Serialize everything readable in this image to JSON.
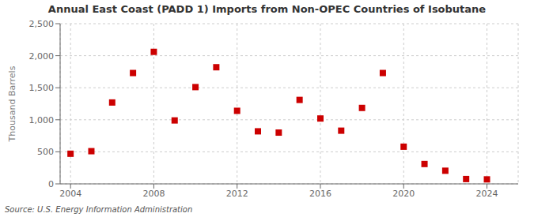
{
  "chart_data": {
    "type": "scatter",
    "title": "Annual East Coast (PADD 1) Imports from Non-OPEC Countries of Isobutane",
    "ylabel": "Thousand Barrels",
    "annotations": [
      "Source: U.S. Energy Information Administration"
    ],
    "x": [
      2004,
      2005,
      2006,
      2007,
      2008,
      2009,
      2010,
      2011,
      2012,
      2013,
      2014,
      2015,
      2016,
      2017,
      2018,
      2019,
      2020,
      2021,
      2022,
      2023,
      2024
    ],
    "values": [
      470,
      510,
      1270,
      1730,
      2060,
      990,
      1510,
      1820,
      1140,
      820,
      800,
      1310,
      1020,
      830,
      1185,
      1730,
      580,
      310,
      205,
      75,
      70
    ],
    "color": "#cc0000",
    "marker": "square",
    "xlim": [
      2003.5,
      2025.5
    ],
    "xticks": [
      2004,
      2008,
      2012,
      2016,
      2020,
      2024
    ],
    "ylim": [
      0,
      2500
    ],
    "yticks": [
      0,
      500,
      {
        "value": 1000,
        "label": "1,000"
      },
      {
        "value": 1500,
        "label": "1,500"
      },
      {
        "value": 2000,
        "label": "2,000"
      },
      {
        "value": 2500,
        "label": "2,500"
      }
    ],
    "grid": true
  }
}
